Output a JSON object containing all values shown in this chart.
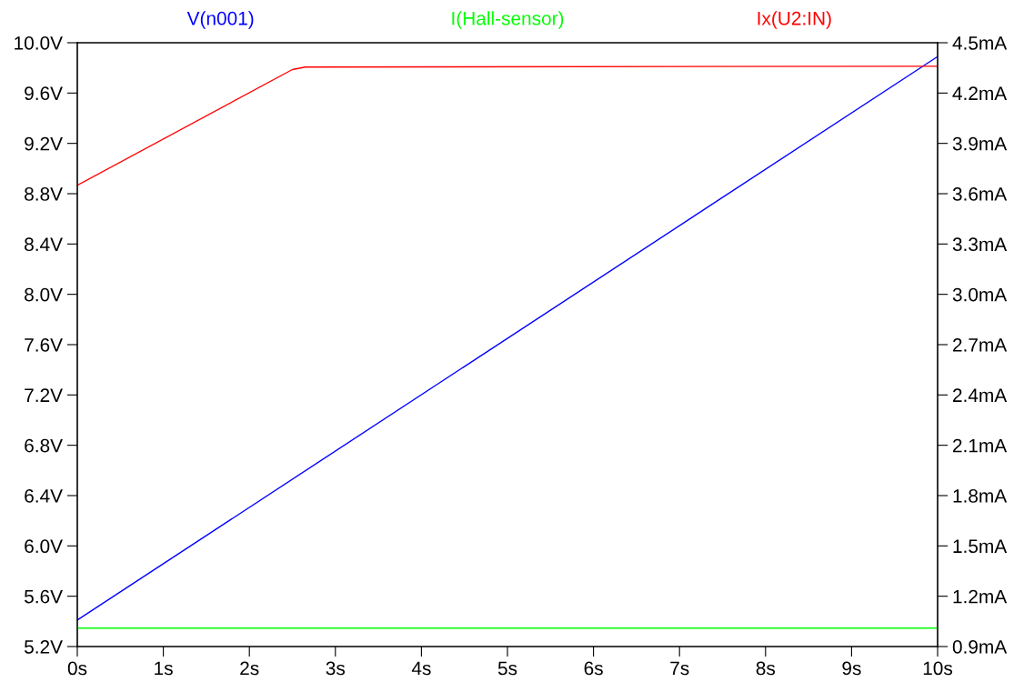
{
  "chart_data": {
    "type": "line",
    "xlim": [
      0,
      10
    ],
    "ylim": [
      5.2,
      10.0
    ],
    "y2lim": [
      0.9,
      4.5
    ],
    "grid": false,
    "legend": false,
    "marker": "none",
    "line_style": "solid",
    "xticks": [
      {
        "value": 0,
        "label": "0s"
      },
      {
        "value": 1,
        "label": "1s"
      },
      {
        "value": 2,
        "label": "2s"
      },
      {
        "value": 3,
        "label": "3s"
      },
      {
        "value": 4,
        "label": "4s"
      },
      {
        "value": 5,
        "label": "5s"
      },
      {
        "value": 6,
        "label": "6s"
      },
      {
        "value": 7,
        "label": "7s"
      },
      {
        "value": 8,
        "label": "8s"
      },
      {
        "value": 9,
        "label": "9s"
      },
      {
        "value": 10,
        "label": "10s"
      }
    ],
    "yticks": [
      {
        "value": 5.2,
        "label": "5.2V"
      },
      {
        "value": 5.6,
        "label": "5.6V"
      },
      {
        "value": 6.0,
        "label": "6.0V"
      },
      {
        "value": 6.4,
        "label": "6.4V"
      },
      {
        "value": 6.8,
        "label": "6.8V"
      },
      {
        "value": 7.2,
        "label": "7.2V"
      },
      {
        "value": 7.6,
        "label": "7.6V"
      },
      {
        "value": 8.0,
        "label": "8.0V"
      },
      {
        "value": 8.4,
        "label": "8.4V"
      },
      {
        "value": 8.8,
        "label": "8.8V"
      },
      {
        "value": 9.2,
        "label": "9.2V"
      },
      {
        "value": 9.6,
        "label": "9.6V"
      },
      {
        "value": 10.0,
        "label": "10.0V"
      }
    ],
    "y2ticks": [
      {
        "value": 0.9,
        "label": "0.9mA"
      },
      {
        "value": 1.2,
        "label": "1.2mA"
      },
      {
        "value": 1.5,
        "label": "1.5mA"
      },
      {
        "value": 1.8,
        "label": "1.8mA"
      },
      {
        "value": 2.1,
        "label": "2.1mA"
      },
      {
        "value": 2.4,
        "label": "2.4mA"
      },
      {
        "value": 2.7,
        "label": "2.7mA"
      },
      {
        "value": 3.0,
        "label": "3.0mA"
      },
      {
        "value": 3.3,
        "label": "3.3mA"
      },
      {
        "value": 3.6,
        "label": "3.6mA"
      },
      {
        "value": 3.9,
        "label": "3.9mA"
      },
      {
        "value": 4.2,
        "label": "4.2mA"
      },
      {
        "value": 4.5,
        "label": "4.5mA"
      }
    ],
    "series": [
      {
        "name": "V(n001)",
        "color": "#0000ff",
        "x": [
          0,
          10
        ],
        "values": [
          5.41,
          9.89
        ]
      },
      {
        "name": "I(Hall-sensor)",
        "color": "#00ff00",
        "axis": "y2",
        "x": [
          0,
          10
        ],
        "values": [
          1.01,
          1.01
        ]
      },
      {
        "name": "Ix(U2:IN)",
        "color": "#ff0000",
        "axis": "y2",
        "x": [
          0,
          2.5,
          2.65,
          10
        ],
        "values": [
          3.65,
          4.34,
          4.355,
          4.36
        ]
      }
    ]
  }
}
